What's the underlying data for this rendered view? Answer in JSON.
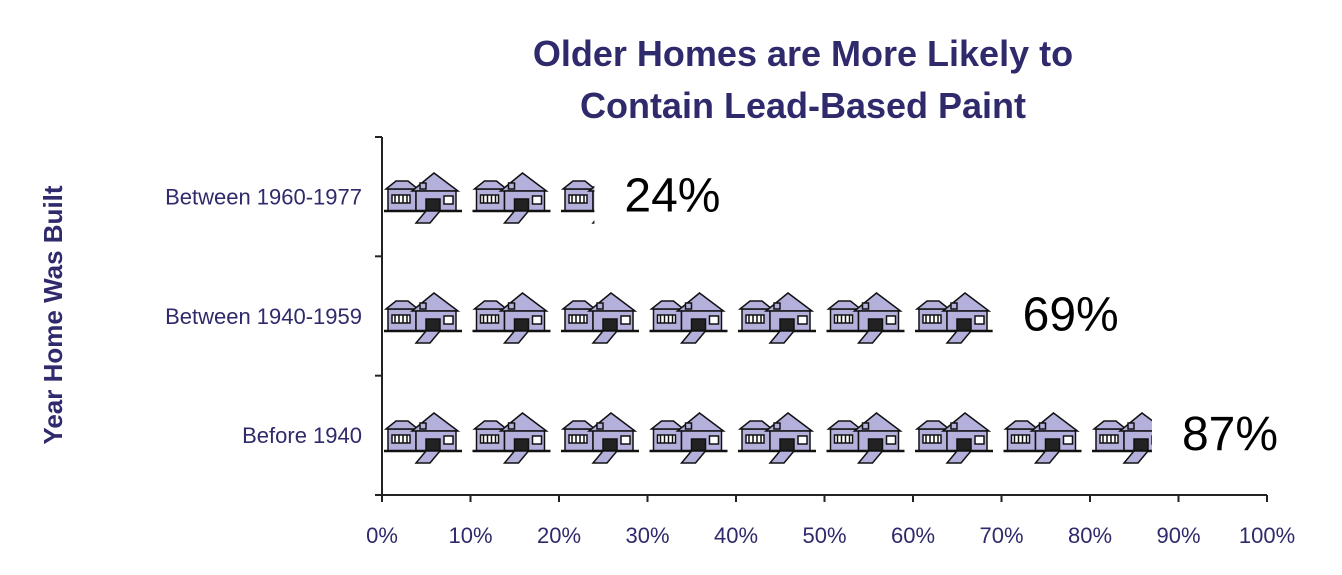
{
  "chart_data": {
    "type": "pictograph",
    "title": "Older Homes are More Likely to Contain Lead-Based Paint",
    "y_label": "Year Home Was Built",
    "categories": [
      "Between 1960-1977",
      "Between 1940-1959",
      "Before 1940"
    ],
    "values": [
      24,
      69,
      87
    ],
    "value_labels": [
      "24%",
      "69%",
      "87%"
    ],
    "color": "#b3b0dc",
    "xlim": [
      0,
      100
    ],
    "xticks": [
      {
        "value": 0,
        "label": "0%"
      },
      {
        "value": 10,
        "label": "10%"
      },
      {
        "value": 20,
        "label": "20%"
      },
      {
        "value": 30,
        "label": "30%"
      },
      {
        "value": 40,
        "label": "40%"
      },
      {
        "value": 50,
        "label": "50%"
      },
      {
        "value": 60,
        "label": "60%"
      },
      {
        "value": 70,
        "label": "70%"
      },
      {
        "value": 80,
        "label": "80%"
      },
      {
        "value": 90,
        "label": "90%"
      },
      {
        "value": 100,
        "label": "100%"
      }
    ]
  }
}
